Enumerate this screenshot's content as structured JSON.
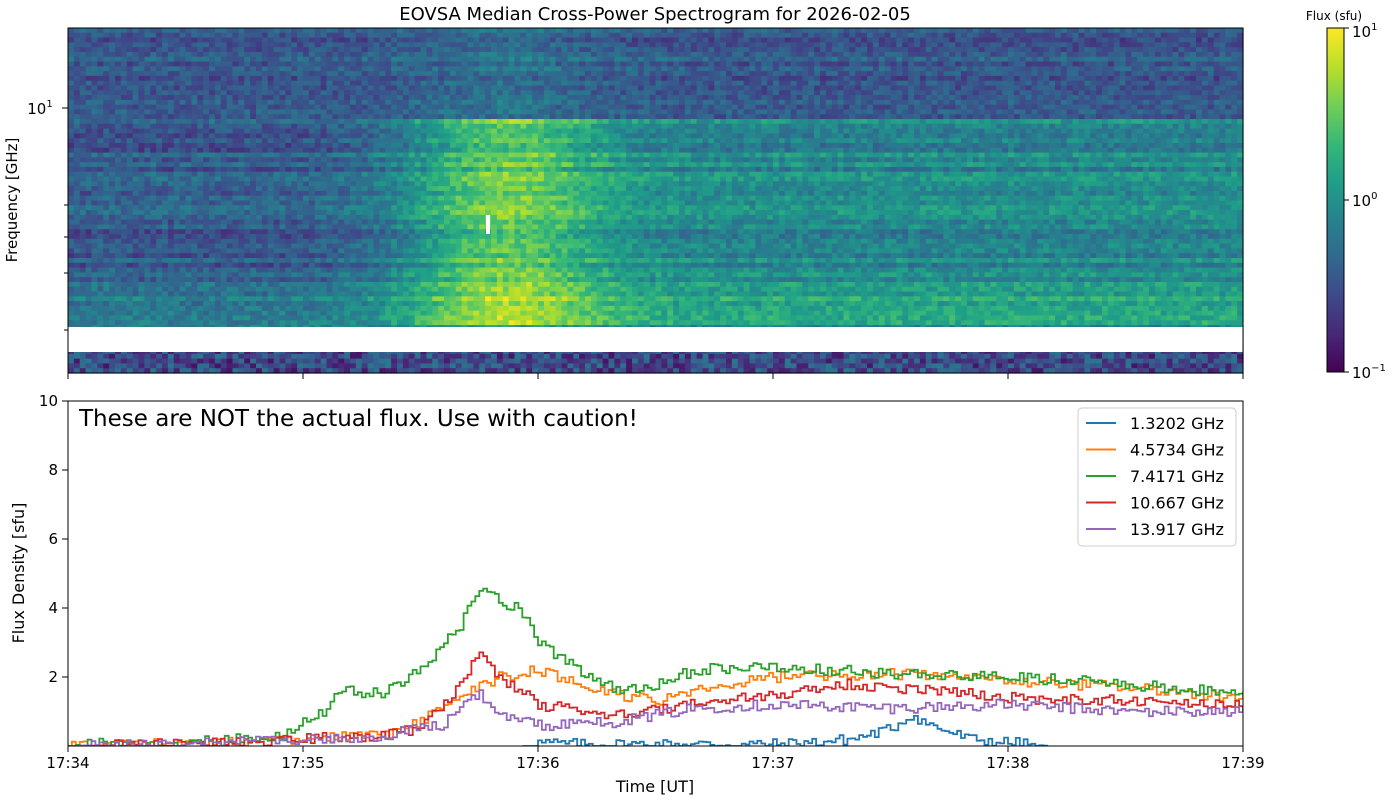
{
  "chart_data": [
    {
      "type": "heatmap",
      "title": "EOVSA Median Cross-Power Spectrogram for 2026-02-05",
      "ylabel": "Frequency [GHz]",
      "yscale": "log",
      "y_tick_label": {
        "base": "10",
        "exp": "1",
        "value": 10
      },
      "x_range": [
        "17:34",
        "17:39"
      ],
      "colorbar": {
        "label": "Flux (sfu)",
        "scale": "log",
        "range": [
          0.1,
          10
        ],
        "ticks": [
          {
            "base": "10",
            "exp": "1",
            "value": 10
          },
          {
            "base": "10",
            "exp": "0",
            "value": 1
          },
          {
            "base": "10",
            "exp": "−1",
            "value": 0.1
          }
        ]
      },
      "colormap": [
        "#440154",
        "#482878",
        "#3e4989",
        "#31688e",
        "#26828e",
        "#1f9e89",
        "#35b779",
        "#6ece58",
        "#b5de2b",
        "#fde725"
      ],
      "features": {
        "flare_peak_time": "17:35:50",
        "background_level_sfu": 0.3
      }
    },
    {
      "type": "line",
      "annotation": "These are NOT the actual flux. Use with caution!",
      "xlabel": "Time [UT]",
      "ylabel": "Flux Density [sfu]",
      "x_ticks": [
        "17:34",
        "17:35",
        "17:36",
        "17:37",
        "17:38",
        "17:39"
      ],
      "y_ticks": [
        "2",
        "4",
        "6",
        "8",
        "10"
      ],
      "ylim": [
        0,
        10
      ],
      "legend_position": "upper-right",
      "series": [
        {
          "name": "1.3202 GHz",
          "color": "#1f77b4",
          "points": [
            [
              "17:35:56",
              0
            ],
            [
              "17:36:00",
              0.1
            ],
            [
              "17:36:10",
              0.05
            ],
            [
              "17:37:00",
              0.05
            ],
            [
              "17:37:10",
              0.1
            ],
            [
              "17:37:20",
              0.2
            ],
            [
              "17:37:30",
              0.5
            ],
            [
              "17:37:35",
              0.9
            ],
            [
              "17:37:40",
              0.6
            ],
            [
              "17:37:50",
              0.2
            ],
            [
              "17:38:00",
              0.1
            ],
            [
              "17:38:10",
              0
            ]
          ]
        },
        {
          "name": "4.5734 GHz",
          "color": "#ff7f0e",
          "points": [
            [
              "17:34:00",
              0.05
            ],
            [
              "17:34:30",
              0.05
            ],
            [
              "17:35:00",
              0.2
            ],
            [
              "17:35:20",
              0.3
            ],
            [
              "17:35:30",
              0.7
            ],
            [
              "17:35:40",
              1.5
            ],
            [
              "17:35:50",
              2.0
            ],
            [
              "17:36:00",
              2.2
            ],
            [
              "17:36:15",
              1.6
            ],
            [
              "17:36:30",
              1.3
            ],
            [
              "17:36:40",
              1.6
            ],
            [
              "17:37:00",
              2.0
            ],
            [
              "17:37:30",
              2.1
            ],
            [
              "17:38:00",
              1.9
            ],
            [
              "17:38:30",
              1.7
            ],
            [
              "17:39:00",
              1.4
            ]
          ]
        },
        {
          "name": "7.4171 GHz",
          "color": "#2ca02c",
          "points": [
            [
              "17:34:00",
              0.05
            ],
            [
              "17:34:30",
              0.1
            ],
            [
              "17:34:55",
              0.3
            ],
            [
              "17:35:05",
              1.0
            ],
            [
              "17:35:10",
              1.6
            ],
            [
              "17:35:20",
              1.5
            ],
            [
              "17:35:30",
              2.2
            ],
            [
              "17:35:40",
              3.5
            ],
            [
              "17:35:45",
              4.6
            ],
            [
              "17:35:50",
              4.2
            ],
            [
              "17:35:55",
              4.0
            ],
            [
              "17:36:00",
              3.0
            ],
            [
              "17:36:10",
              2.2
            ],
            [
              "17:36:20",
              1.6
            ],
            [
              "17:36:30",
              1.8
            ],
            [
              "17:36:40",
              2.2
            ],
            [
              "17:37:00",
              2.3
            ],
            [
              "17:37:30",
              2.1
            ],
            [
              "17:38:00",
              2.0
            ],
            [
              "17:38:30",
              1.8
            ],
            [
              "17:39:00",
              1.5
            ]
          ]
        },
        {
          "name": "10.667 GHz",
          "color": "#d62728",
          "points": [
            [
              "17:34:00",
              0.0
            ],
            [
              "17:34:30",
              0.05
            ],
            [
              "17:35:00",
              0.2
            ],
            [
              "17:35:20",
              0.3
            ],
            [
              "17:35:30",
              0.5
            ],
            [
              "17:35:40",
              1.8
            ],
            [
              "17:35:45",
              2.7
            ],
            [
              "17:35:50",
              2.0
            ],
            [
              "17:36:00",
              1.2
            ],
            [
              "17:36:20",
              0.9
            ],
            [
              "17:36:40",
              1.2
            ],
            [
              "17:37:00",
              1.5
            ],
            [
              "17:37:20",
              1.8
            ],
            [
              "17:37:40",
              1.6
            ],
            [
              "17:38:00",
              1.4
            ],
            [
              "17:38:30",
              1.3
            ],
            [
              "17:39:00",
              1.2
            ]
          ]
        },
        {
          "name": "13.917 GHz",
          "color": "#9467bd",
          "points": [
            [
              "17:34:00",
              0.0
            ],
            [
              "17:34:30",
              0.1
            ],
            [
              "17:35:00",
              0.2
            ],
            [
              "17:35:20",
              0.3
            ],
            [
              "17:35:35",
              0.6
            ],
            [
              "17:35:45",
              1.5
            ],
            [
              "17:35:50",
              0.9
            ],
            [
              "17:36:00",
              0.6
            ],
            [
              "17:36:20",
              0.7
            ],
            [
              "17:36:40",
              1.1
            ],
            [
              "17:37:00",
              1.2
            ],
            [
              "17:37:30",
              1.1
            ],
            [
              "17:38:00",
              1.2
            ],
            [
              "17:38:30",
              1.0
            ],
            [
              "17:39:00",
              1.0
            ]
          ]
        }
      ]
    }
  ]
}
